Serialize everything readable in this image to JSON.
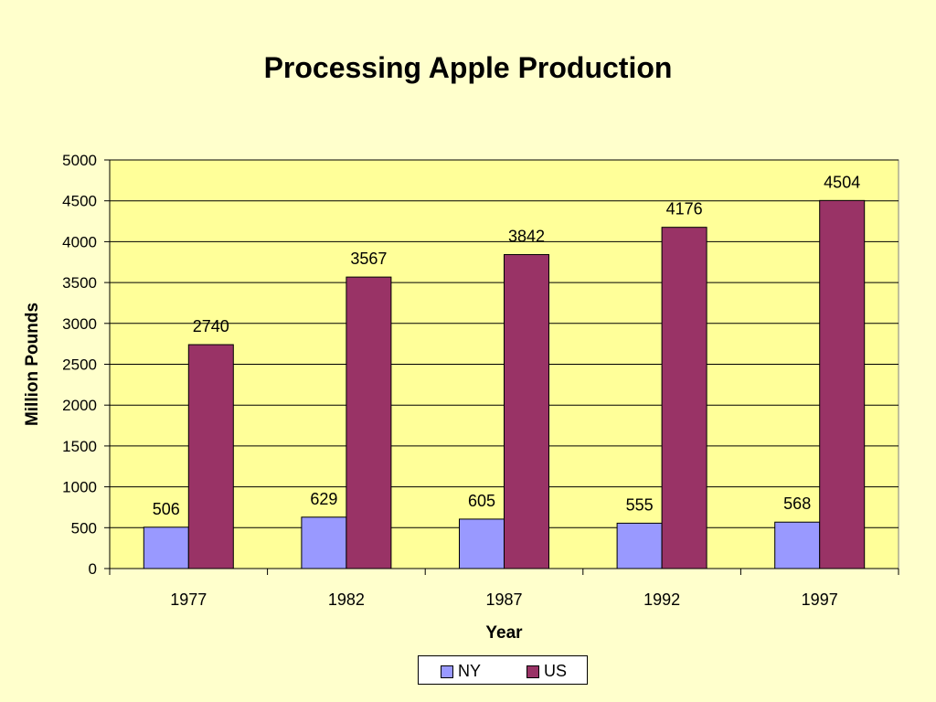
{
  "chart_data": {
    "type": "bar",
    "title": "Processing Apple Production",
    "xlabel": "Year",
    "ylabel": "Million Pounds",
    "categories": [
      "1977",
      "1982",
      "1987",
      "1992",
      "1997"
    ],
    "series": [
      {
        "name": "NY",
        "values": [
          506,
          629,
          605,
          555,
          568
        ],
        "color": "#9999ff"
      },
      {
        "name": "US",
        "values": [
          2740,
          3567,
          3842,
          4176,
          4504
        ],
        "color": "#993366"
      }
    ],
    "ylim": [
      0,
      5000
    ],
    "yticks": [
      0,
      500,
      1000,
      1500,
      2000,
      2500,
      3000,
      3500,
      4000,
      4500,
      5000
    ],
    "grid": true,
    "data_labels": true,
    "legend_position": "bottom",
    "plot_background": "#ffff99",
    "page_background": "#ffffcc"
  }
}
